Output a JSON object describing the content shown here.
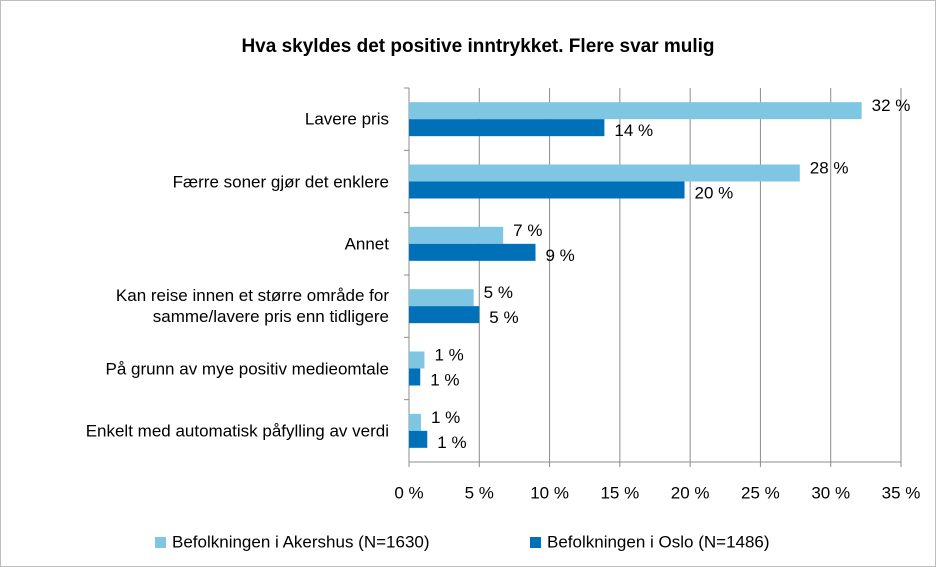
{
  "chart_data": {
    "type": "hbar",
    "title": "Hva skyldes det positive inntrykket. Flere svar mulig",
    "categories": [
      "Lavere pris",
      "Færre soner gjør det enklere",
      "Annet",
      "Kan reise innen et større område for samme/lavere pris enn tidligere",
      "På grunn av mye positiv medieomtale",
      "Enkelt med automatisk påfylling av verdi"
    ],
    "series": [
      {
        "name": "Befolkningen i Akershus (N=1630)",
        "color": "#7ec6e2",
        "values": [
          32.2,
          27.8,
          6.7,
          4.6,
          1.1,
          0.85
        ],
        "value_labels": [
          "32 %",
          "28 %",
          "7 %",
          "5 %",
          "1 %",
          "1 %"
        ]
      },
      {
        "name": "Befolkningen i Oslo (N=1486)",
        "color": "#0070b8",
        "values": [
          13.9,
          19.6,
          9.0,
          5.0,
          0.8,
          1.3
        ],
        "value_labels": [
          "14 %",
          "20 %",
          "9 %",
          "5 %",
          "1 %",
          "1 %"
        ]
      }
    ],
    "xlim": [
      0,
      35
    ],
    "xticks": [
      {
        "value": 0,
        "label": "0 %"
      },
      {
        "value": 5,
        "label": "5 %"
      },
      {
        "value": 10,
        "label": "10 %"
      },
      {
        "value": 15,
        "label": "15 %"
      },
      {
        "value": 20,
        "label": "20 %"
      },
      {
        "value": 25,
        "label": "25 %"
      },
      {
        "value": 30,
        "label": "30 %"
      },
      {
        "value": 35,
        "label": "35 %"
      }
    ],
    "grid": true,
    "legend": "bottom"
  }
}
